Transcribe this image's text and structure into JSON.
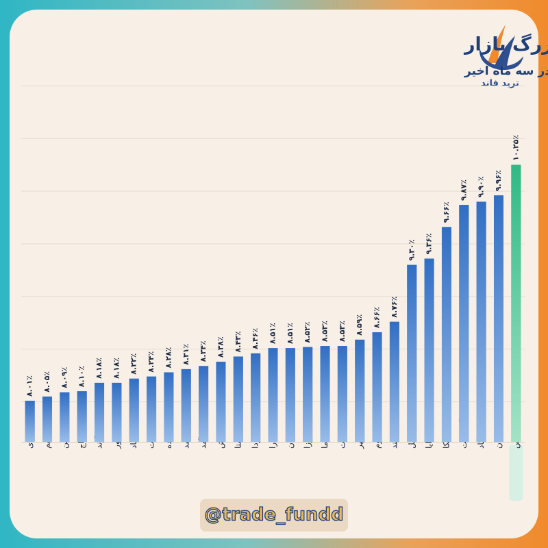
{
  "chart_data": {
    "type": "bar",
    "title": "بازدهی صندوق‌های درآمد ثابت ETF بزرگ بازار",
    "subtitle": "در سه ماه اخیر",
    "brand": "ترید فاند",
    "handle": "@trade_fundd",
    "categories": [
      "همای",
      "شمیم",
      "کارین",
      "کاج",
      "آوند",
      "ماهور",
      "اعتماد",
      "یاقوت",
      "اکیده",
      "رشد",
      "کارآمد",
      "پاداش",
      "اوصتا",
      "فردا",
      "کارا",
      "کیان",
      "فیروزا",
      "سپیدما",
      "ثبات",
      "سپر",
      "تداوم",
      "لبخند",
      "ساحل",
      "پایا",
      "توسکا",
      "آتیه ملت",
      "پاسارگاد",
      "افران",
      "اونیکس"
    ],
    "values": [
      8.01,
      8.05,
      8.09,
      8.1,
      8.18,
      8.18,
      8.22,
      8.24,
      8.28,
      8.31,
      8.34,
      8.38,
      8.43,
      8.46,
      8.51,
      8.51,
      8.52,
      8.53,
      8.53,
      8.59,
      8.66,
      8.76,
      9.3,
      9.36,
      9.66,
      9.87,
      9.9,
      9.96,
      10.25
    ],
    "value_labels": [
      "۸.۰۱٪",
      "۸.۰۵٪",
      "۸.۰۹٪",
      "۸.۱۰٪",
      "۸.۱۸٪",
      "۸.۱۸٪",
      "۸.۲۲٪",
      "۸.۲۴٪",
      "۸.۲۸٪",
      "۸.۳۱٪",
      "۸.۳۴٪",
      "۸.۳۸٪",
      "۸.۴۳٪",
      "۸.۴۶٪",
      "۸.۵۱٪",
      "۸.۵۱٪",
      "۸.۵۲٪",
      "۸.۵۳٪",
      "۸.۵۳٪",
      "۸.۵۹٪",
      "۸.۶۶٪",
      "۸.۷۶٪",
      "۹.۳۰٪",
      "۹.۳۶٪",
      "۹.۶۶٪",
      "۹.۸۷٪",
      "۹.۹۰٪",
      "۹.۹۶٪",
      "۱۰.۲۵٪"
    ],
    "colors": [
      "#3b78c8",
      "#3b78c8",
      "#3b78c8",
      "#3b78c8",
      "#3b78c8",
      "#3b78c8",
      "#3b78c8",
      "#3b78c8",
      "#3b78c8",
      "#3b78c8",
      "#3b78c8",
      "#3b78c8",
      "#3b78c8",
      "#3b78c8",
      "#3b78c8",
      "#3b78c8",
      "#3b78c8",
      "#3b78c8",
      "#3b78c8",
      "#3b78c8",
      "#3b78c8",
      "#3b78c8",
      "#3b78c8",
      "#3b78c8",
      "#3b78c8",
      "#3b78c8",
      "#3b78c8",
      "#3b78c8",
      "#2fb985"
    ],
    "ylim": [
      7.62,
      11.1
    ],
    "yticks": [
      8,
      8.5,
      9,
      9.5,
      10,
      10.5,
      11
    ],
    "grid": true
  }
}
